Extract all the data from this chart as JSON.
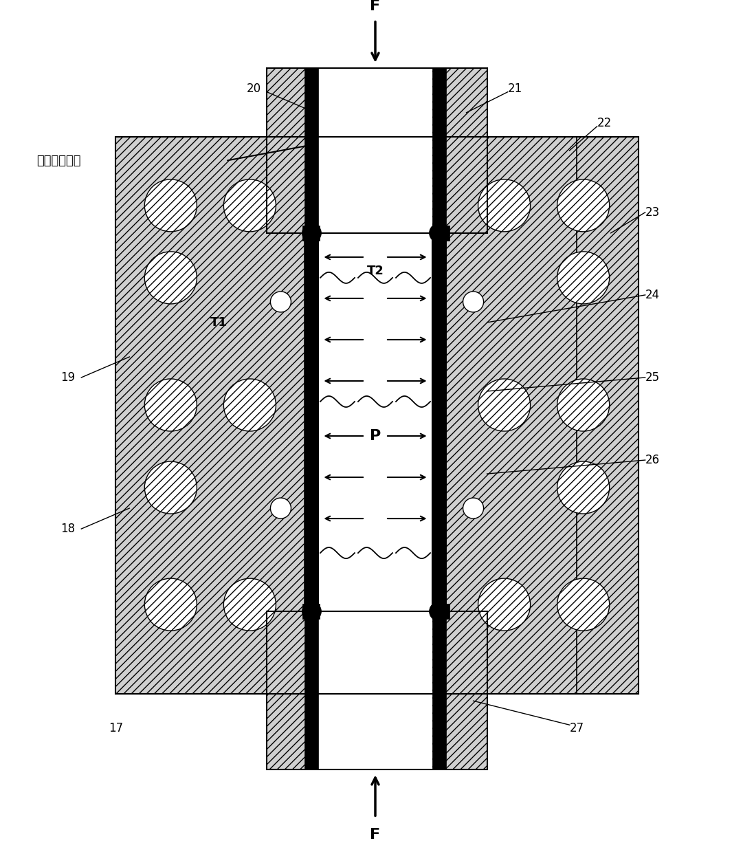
{
  "fig_width": 10.97,
  "fig_height": 12.23,
  "labels": {
    "hot_glass": "热态熔融玻璃",
    "F_top": "F",
    "F_bottom": "F",
    "T1": "T1",
    "T2": "T2",
    "P": "P",
    "n17": "17",
    "n18": "18",
    "n19": "19",
    "n20": "20",
    "n21": "21",
    "n22": "22",
    "n23": "23",
    "n24": "24",
    "n25": "25",
    "n26": "26",
    "n27": "27"
  },
  "hatch_angle": "///",
  "hatch_color": "#000000",
  "hatch_bg": "#d8d8d8",
  "line_width": 1.5,
  "pipe_wall_lw": 10
}
